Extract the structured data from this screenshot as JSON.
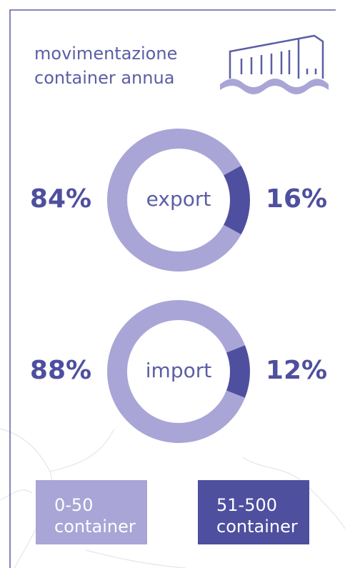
{
  "title": "movimentazione container annua",
  "chart_data": [
    {
      "type": "pie",
      "label": "export",
      "categories": [
        "0-50 container",
        "51-500 container"
      ],
      "values": [
        84,
        16
      ],
      "value_labels": [
        "84%",
        "16%"
      ],
      "colors": [
        "#a9a5d6",
        "#4e4f9f"
      ]
    },
    {
      "type": "pie",
      "label": "import",
      "categories": [
        "0-50 container",
        "51-500 container"
      ],
      "values": [
        88,
        12
      ],
      "value_labels": [
        "88%",
        "12%"
      ],
      "colors": [
        "#a9a5d6",
        "#4e4f9f"
      ]
    }
  ]
}
